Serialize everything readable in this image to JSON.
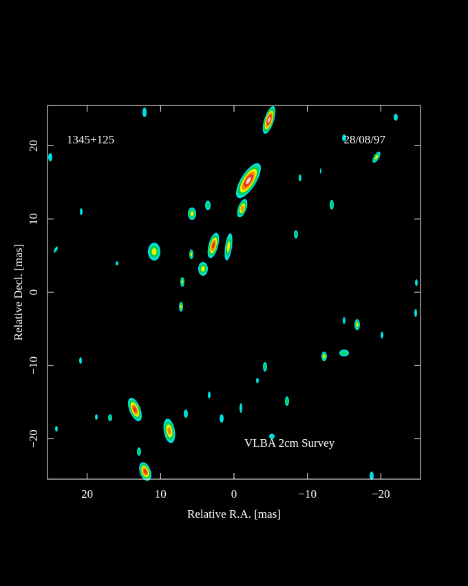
{
  "chart_data": {
    "type": "image",
    "title": "1345+125",
    "date": "28/08/97",
    "annotation": "VLBA 2cm Survey",
    "x_label": "Relative R.A. [mas]",
    "y_label": "Relative Decl. [mas]",
    "xlim": [
      25.4,
      -25.4
    ],
    "ylim": [
      -25.5,
      25.5
    ],
    "xticks": [
      20,
      10,
      0,
      {
        "value": -10,
        "label": "−10"
      },
      {
        "value": -20,
        "label": "−20"
      }
    ],
    "yticks": [
      {
        "value": -20,
        "label": "−20"
      },
      {
        "value": -10,
        "label": "−10"
      },
      0,
      10,
      20
    ],
    "color": "#ffffff"
  }
}
